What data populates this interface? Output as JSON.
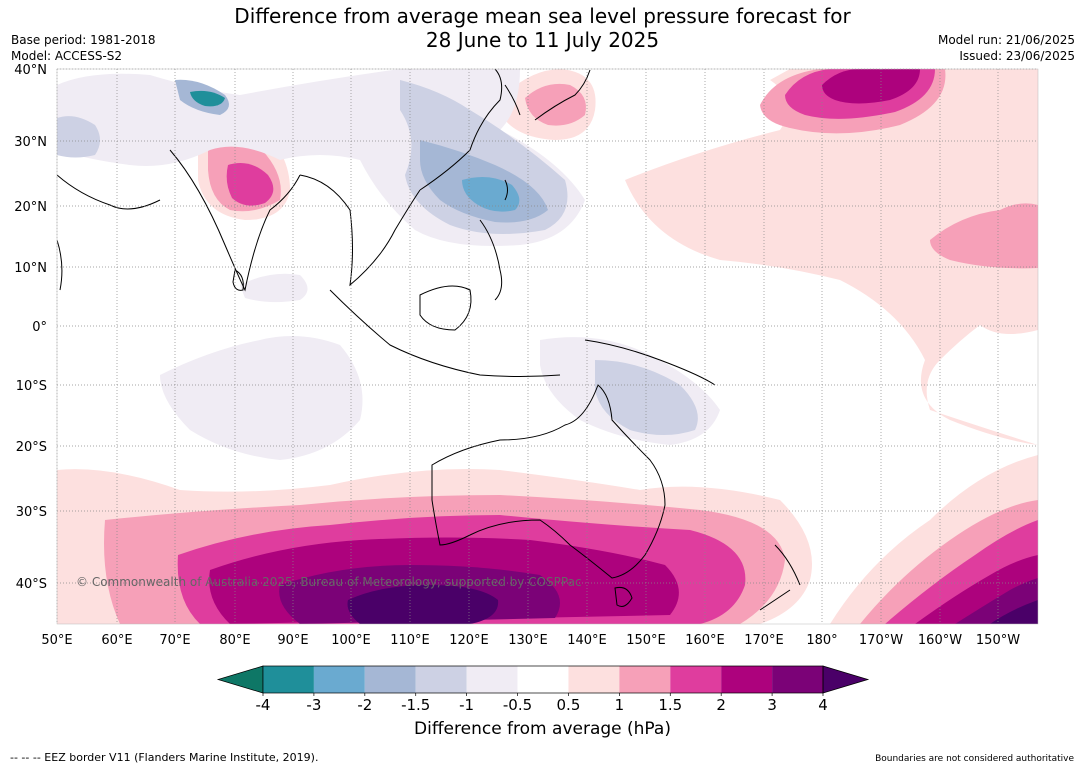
{
  "header": {
    "title_line1": "Difference from average mean sea level pressure forecast for",
    "title_line2": "28 June to 11 July 2025",
    "base_period": "Base period: 1981-2018",
    "model": "Model: ACCESS-S2",
    "model_run": "Model run: 21/06/2025",
    "issued": "Issued: 23/06/2025"
  },
  "map": {
    "lat_labels": [
      "40°N",
      "30°N",
      "20°N",
      "10°N",
      "0°",
      "10°S",
      "20°S",
      "30°S",
      "40°S"
    ],
    "lon_labels": [
      "50°E",
      "60°E",
      "70°E",
      "80°E",
      "90°E",
      "100°E",
      "110°E",
      "120°E",
      "130°E",
      "140°E",
      "150°E",
      "160°E",
      "170°E",
      "180°",
      "170°W",
      "160°W",
      "150°W"
    ],
    "copyright": "© Commonwealth of Australia 2025, Bureau of Meteorology; supported by COSPPac"
  },
  "colorbar": {
    "title": "Difference from average (hPa)",
    "tick_labels": [
      "-4",
      "-3",
      "-2",
      "-1.5",
      "-1",
      "-0.5",
      "0.5",
      "1",
      "1.5",
      "2",
      "3",
      "4"
    ],
    "colors": [
      "#0e7766",
      "#1f8f9a",
      "#6aaad0",
      "#a5b7d5",
      "#cdd1e4",
      "#f0ecf4",
      "#ffffff",
      "#fde0df",
      "#f6a0b8",
      "#df3d9e",
      "#ad027d",
      "#7b0277",
      "#4a0068"
    ]
  },
  "footer": {
    "eez_note": "--  --  -- EEZ border V11 (Flanders Marine Institute, 2019).",
    "boundary_note": "Boundaries are not considered authoritative"
  }
}
